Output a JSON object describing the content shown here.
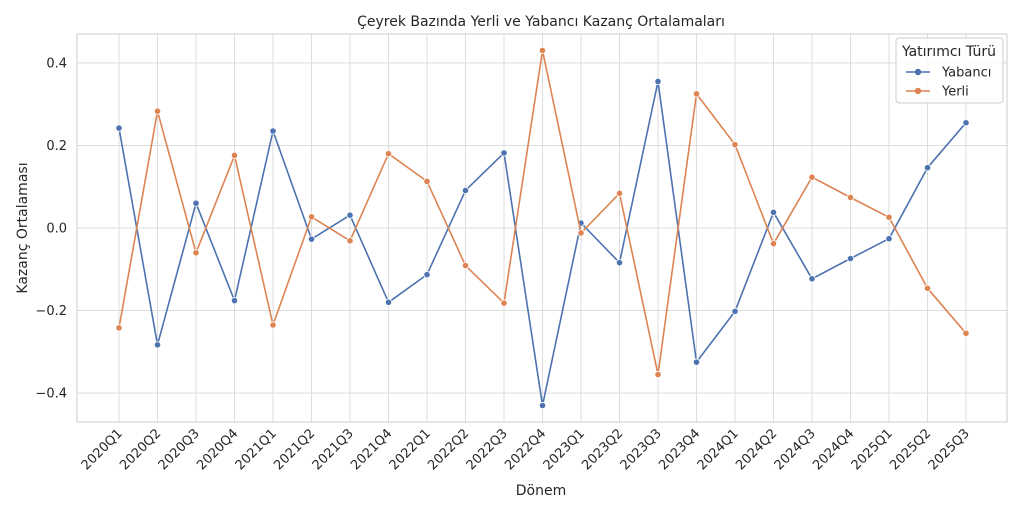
{
  "chart_data": {
    "type": "line",
    "title": "Çeyrek Bazında Yerli ve Yabancı Kazanç Ortalamaları",
    "xlabel": "Dönem",
    "ylabel": "Kazanç Ortalaması",
    "categories": [
      "2020Q1",
      "2020Q2",
      "2020Q3",
      "2020Q4",
      "2021Q1",
      "2021Q2",
      "2021Q3",
      "2021Q4",
      "2022Q1",
      "2022Q2",
      "2022Q3",
      "2022Q4",
      "2023Q1",
      "2023Q2",
      "2023Q3",
      "2023Q4",
      "2024Q1",
      "2024Q2",
      "2024Q3",
      "2024Q4",
      "2025Q1",
      "2025Q2",
      "2025Q3"
    ],
    "ylim": [
      -0.47,
      0.47
    ],
    "yticks": [
      {
        "value": 0.4,
        "label": "0.4"
      },
      {
        "value": 0.2,
        "label": "0.2"
      },
      {
        "value": 0.0,
        "label": "0.0"
      },
      {
        "value": -0.2,
        "label": "−0.2"
      },
      {
        "value": -0.4,
        "label": "−0.4"
      }
    ],
    "grid": true,
    "legend": {
      "title": "Yatırımcı Türü",
      "placement": "top-right"
    },
    "series": [
      {
        "name": "Yabancı",
        "color": "#4c72b0",
        "values": [
          0.242,
          -0.283,
          0.06,
          -0.176,
          0.235,
          -0.027,
          0.031,
          -0.18,
          -0.113,
          0.091,
          0.182,
          -0.43,
          0.012,
          -0.084,
          0.355,
          -0.325,
          -0.202,
          0.038,
          -0.123,
          -0.074,
          -0.026,
          0.146,
          0.255
        ]
      },
      {
        "name": "Yerli",
        "color": "#dd8452",
        "values": [
          -0.242,
          0.283,
          -0.06,
          0.176,
          -0.235,
          0.027,
          -0.031,
          0.18,
          0.113,
          -0.091,
          -0.182,
          0.43,
          -0.012,
          0.084,
          -0.355,
          0.325,
          0.202,
          -0.038,
          0.123,
          0.074,
          0.026,
          -0.146,
          -0.255
        ]
      }
    ]
  }
}
